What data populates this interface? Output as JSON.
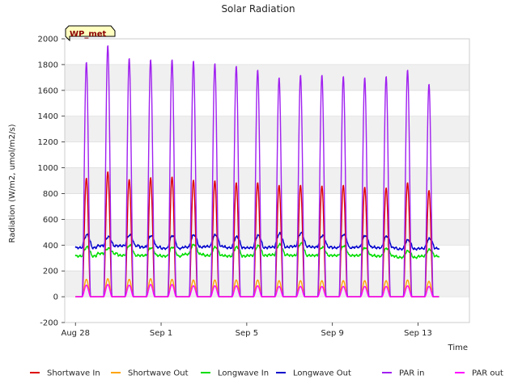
{
  "chart_data": {
    "type": "line",
    "title": "Solar Radiation",
    "xlabel": "Time",
    "ylabel": "Radiation (W/m2, umol/m2/s)",
    "ylim": [
      -200,
      2000
    ],
    "yticks": [
      -200,
      0,
      200,
      400,
      600,
      800,
      1000,
      1200,
      1400,
      1600,
      1800,
      2000
    ],
    "x_start": "2024-08-28",
    "x_days": 17,
    "xticks": [
      {
        "day": 0,
        "label": "Aug 28"
      },
      {
        "day": 4,
        "label": "Sep 1"
      },
      {
        "day": 8,
        "label": "Sep 5"
      },
      {
        "day": 12,
        "label": "Sep 9"
      },
      {
        "day": 16,
        "label": "Sep 13"
      }
    ],
    "badge": "WP_met",
    "grid": true,
    "legend_position": "bottom",
    "series": [
      {
        "name": "Shortwave In",
        "color": "#dd0000",
        "kind": "solar",
        "night": 0,
        "daily_peak": [
          920,
          970,
          910,
          925,
          930,
          905,
          900,
          885,
          885,
          865,
          865,
          860,
          865,
          850,
          845,
          885,
          825
        ]
      },
      {
        "name": "Shortwave Out",
        "color": "#ffa500",
        "kind": "solar",
        "night": 0,
        "daily_peak": [
          135,
          140,
          135,
          140,
          135,
          130,
          130,
          130,
          130,
          125,
          125,
          125,
          125,
          125,
          125,
          130,
          120
        ]
      },
      {
        "name": "Longwave In",
        "color": "#00dd00",
        "kind": "longwave",
        "night_level": [
          315,
          335,
          320,
          320,
          315,
          330,
          320,
          315,
          320,
          325,
          320,
          320,
          320,
          320,
          315,
          305,
          315
        ],
        "daily_peak": [
          385,
          375,
          400,
          380,
          385,
          405,
          385,
          385,
          395,
          405,
          415,
          385,
          395,
          380,
          375,
          355,
          365
        ]
      },
      {
        "name": "Longwave Out",
        "color": "#0000cc",
        "kind": "longwave",
        "night_level": [
          380,
          395,
          395,
          385,
          375,
          385,
          390,
          380,
          380,
          385,
          390,
          385,
          380,
          385,
          380,
          370,
          375
        ],
        "daily_peak": [
          480,
          465,
          480,
          475,
          475,
          480,
          480,
          465,
          475,
          490,
          495,
          475,
          485,
          475,
          470,
          440,
          450
        ]
      },
      {
        "name": "PAR in",
        "color": "#a020f0",
        "kind": "solar",
        "night": 0,
        "daily_peak": [
          1820,
          1950,
          1850,
          1840,
          1840,
          1830,
          1810,
          1790,
          1760,
          1700,
          1720,
          1720,
          1710,
          1700,
          1710,
          1760,
          1650
        ]
      },
      {
        "name": "PAR out",
        "color": "#ff00ff",
        "kind": "solar",
        "night": 0,
        "daily_peak": [
          90,
          95,
          90,
          95,
          95,
          85,
          85,
          85,
          85,
          80,
          80,
          80,
          80,
          80,
          80,
          85,
          80
        ]
      }
    ]
  }
}
